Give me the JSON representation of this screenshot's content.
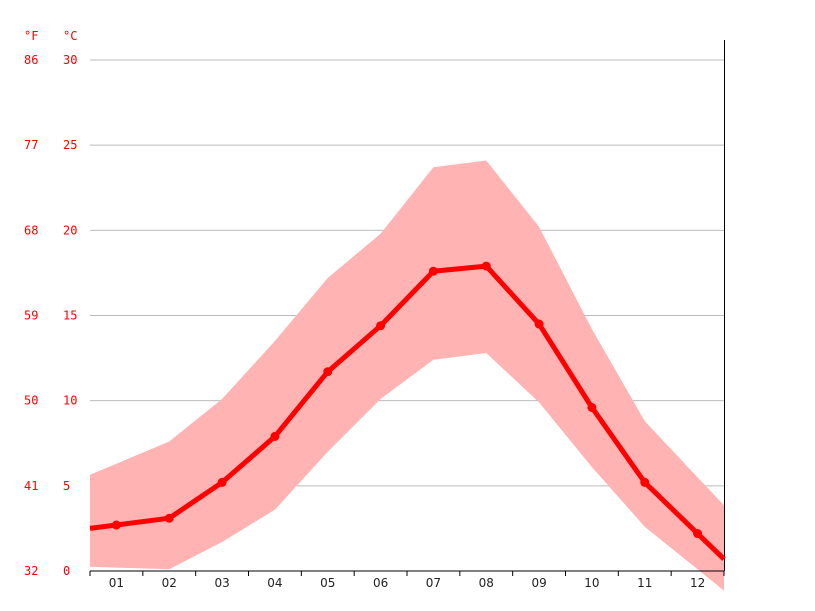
{
  "chart_data": {
    "type": "line",
    "units": {
      "fahrenheit": "°F",
      "celsius": "°C"
    },
    "categories": [
      "01",
      "02",
      "03",
      "04",
      "05",
      "06",
      "07",
      "08",
      "09",
      "10",
      "11",
      "12"
    ],
    "y_ticks_c": [
      "0",
      "5",
      "10",
      "15",
      "20",
      "25",
      "30"
    ],
    "y_ticks_f": [
      "32",
      "41",
      "50",
      "59",
      "68",
      "77",
      "86"
    ],
    "ylim": [
      0,
      30
    ],
    "grid": true,
    "series": [
      {
        "role": "mean",
        "values": [
          2.7,
          3.1,
          5.2,
          7.9,
          11.7,
          14.4,
          17.6,
          17.9,
          14.5,
          9.6,
          5.2,
          2.2
        ]
      },
      {
        "role": "max",
        "values": [
          6.3,
          7.6,
          10.1,
          13.5,
          17.2,
          19.8,
          23.7,
          24.1,
          20.2,
          14.2,
          8.8,
          5.5
        ]
      },
      {
        "role": "min",
        "values": [
          0.2,
          0.1,
          1.7,
          3.6,
          7.0,
          10.1,
          12.4,
          12.8,
          9.9,
          6.1,
          2.6,
          0.1
        ]
      }
    ],
    "colors": {
      "mean_line": "#ff0000",
      "range_band": "#ffb3b3",
      "grid": "#bbbbbb",
      "axis": "#000000"
    }
  }
}
